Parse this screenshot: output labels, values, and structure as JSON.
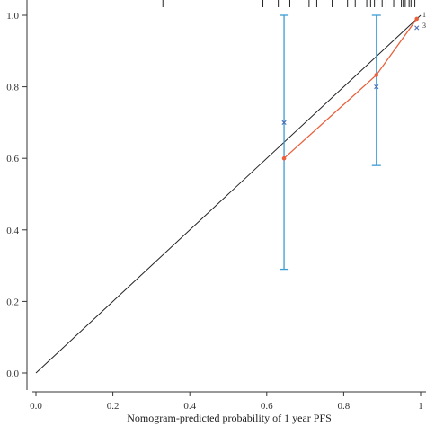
{
  "chart_data": {
    "type": "scatter",
    "title": "",
    "xlabel": "Nomogram-predicted probability of 1 year PFS",
    "ylabel": "",
    "xlim": [
      0.0,
      1.0
    ],
    "ylim": [
      0.0,
      1.0
    ],
    "x_ticks": [
      "0.0",
      "0.2",
      "0.4",
      "0.6",
      "0.8",
      "1"
    ],
    "y_ticks": [
      "0.0",
      "0.2",
      "0.4",
      "0.6",
      "0.8",
      "1.0"
    ],
    "reference_line": {
      "from": [
        0.0,
        0.0
      ],
      "to": [
        1.0,
        1.0
      ],
      "color": "#222222"
    },
    "series": [
      {
        "type": "line",
        "color": "#e8603c",
        "points": [
          [
            0.645,
            0.6
          ],
          [
            0.885,
            0.833
          ],
          [
            0.99,
            0.99
          ]
        ]
      },
      {
        "type": "scatter_x",
        "color": "#4a6fb5",
        "points": [
          [
            0.645,
            0.7
          ],
          [
            0.885,
            0.8
          ],
          [
            0.99,
            0.965
          ]
        ]
      }
    ],
    "error_bars": {
      "color": "#3d9bd6",
      "bars": [
        {
          "x": 0.645,
          "low": 0.29,
          "high": 1.0
        },
        {
          "x": 0.885,
          "low": 0.58,
          "high": 1.0
        }
      ]
    },
    "rug_x": [
      0.33,
      0.59,
      0.63,
      0.66,
      0.71,
      0.73,
      0.77,
      0.81,
      0.83,
      0.86,
      0.87,
      0.88,
      0.9,
      0.91,
      0.93,
      0.95,
      0.955,
      0.96,
      0.97,
      0.975,
      0.985
    ],
    "edge_labels": [
      "1",
      "3"
    ]
  }
}
